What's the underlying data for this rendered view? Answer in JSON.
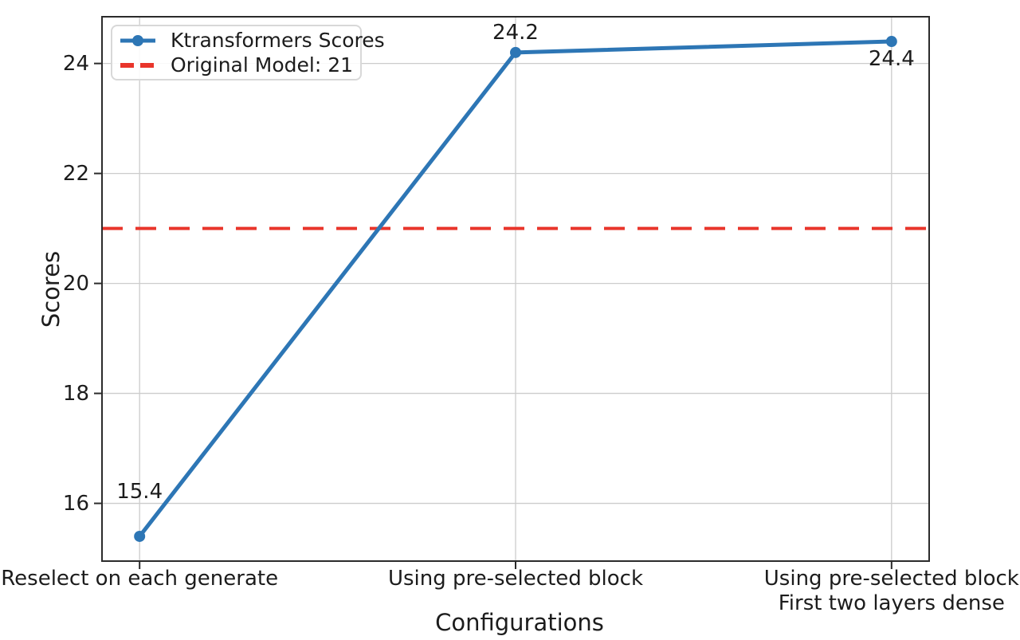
{
  "chart_data": {
    "type": "line",
    "title": "",
    "xlabel": "Configurations",
    "ylabel": "Scores",
    "categories": [
      "Reselect on each generate",
      "Using pre-selected block",
      "Using pre-selected block\nFirst two layers dense"
    ],
    "series": [
      {
        "name": "Ktransformers Scores",
        "values": [
          15.4,
          24.2,
          24.4
        ],
        "color": "#2d76b5",
        "marker": "circle",
        "style": "solid"
      }
    ],
    "reference_line": {
      "label": "Original Model: 21",
      "value": 21,
      "color": "#e9352b",
      "style": "dashed"
    },
    "yticks": [
      16,
      18,
      20,
      22,
      24
    ],
    "ylim": [
      14.95,
      24.85
    ],
    "grid": true,
    "legend_position": "upper-left",
    "colors": {
      "grid": "#cccccc",
      "axis": "#2b2b2b",
      "text": "#1c1c1c",
      "background": "#ffffff"
    }
  }
}
